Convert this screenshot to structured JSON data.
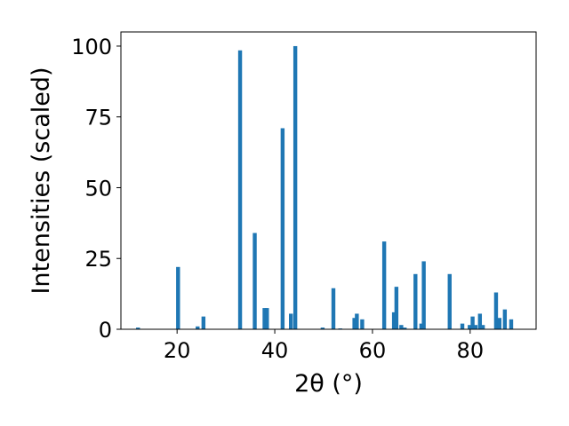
{
  "chart_data": {
    "type": "bar",
    "xlabel": "2θ (°)",
    "ylabel": "Intensities (scaled)",
    "xlim": [
      8.5,
      93.5
    ],
    "ylim": [
      0,
      105
    ],
    "xticks": [
      20,
      40,
      60,
      80
    ],
    "yticks": [
      0,
      25,
      50,
      75,
      100
    ],
    "grid": false,
    "bar_color": "#1f77b4",
    "bar_width": 0.8,
    "series": [
      {
        "x": [
          12.0,
          20.2,
          24.2,
          25.4,
          32.9,
          35.9,
          37.9,
          38.4,
          41.6,
          43.3,
          44.2,
          49.8,
          52.0,
          53.4,
          56.3,
          56.8,
          57.9,
          62.4,
          64.4,
          64.9,
          65.9,
          66.6,
          68.8,
          70.0,
          70.5,
          75.8,
          78.4,
          79.9,
          80.5,
          81.1,
          82.0,
          82.6,
          85.3,
          86.0,
          87.1,
          88.4
        ],
        "values": [
          0.6,
          22,
          1.0,
          4.5,
          98.5,
          34,
          7.5,
          7.5,
          71,
          5.5,
          100,
          0.6,
          14.5,
          0.3,
          4.0,
          5.5,
          3.5,
          31,
          6.0,
          15,
          1.5,
          0.6,
          19.5,
          2.0,
          24,
          19.5,
          2.0,
          1.5,
          4.5,
          1.5,
          5.5,
          1.5,
          13,
          4.0,
          7.0,
          3.5
        ]
      }
    ]
  }
}
